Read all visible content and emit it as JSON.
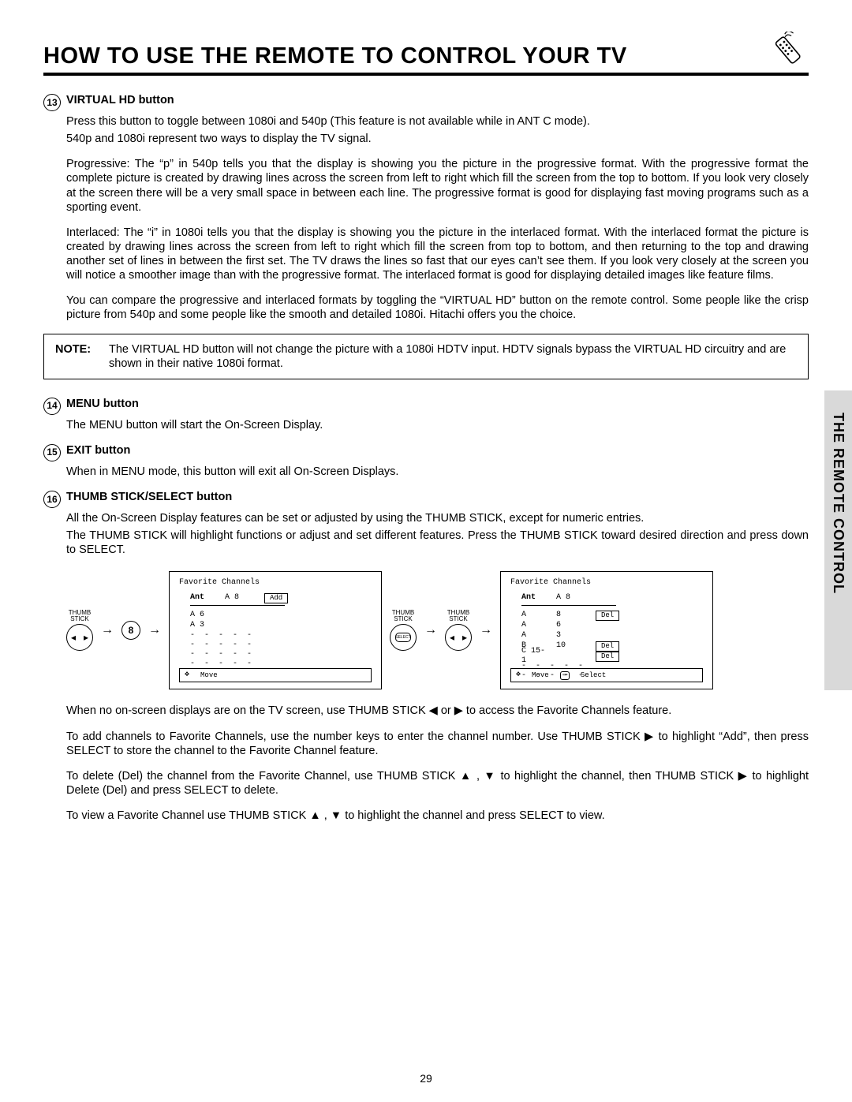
{
  "header": {
    "title": "HOW TO USE THE REMOTE TO CONTROL YOUR TV"
  },
  "side_tab": "THE REMOTE CONTROL",
  "page_number": "29",
  "items": {
    "i13": {
      "num": "13",
      "title": "VIRTUAL HD button",
      "p1": "Press this button to toggle between 1080i and 540p (This feature is not available while in ANT C mode).",
      "p2": "540p and 1080i represent two ways to display the TV signal.",
      "p3": "Progressive: The “p” in 540p tells you that the display is showing you the picture in the progressive format. With the progressive format the complete picture is created by drawing lines across the screen from left to right which fill the screen from the top to bottom. If you look very closely at the screen there will be a very small space in between each line. The progressive format is good for displaying fast moving programs such as a sporting event.",
      "p4": "Interlaced: The “i” in 1080i tells you that the display is showing you the picture in the interlaced format. With the interlaced format the picture is created by drawing lines across the screen from left to right which fill the screen from top to bottom, and then returning to the top and drawing another set of lines in between the first set. The TV draws the lines so fast that our eyes can’t see them. If you look very closely at the screen you will notice a smoother image than with the progressive format. The interlaced format is good for displaying detailed images like feature films.",
      "p5": "You can compare the progressive and interlaced formats by toggling the “VIRTUAL HD” button on the remote control. Some people like the crisp picture from 540p and some people like the smooth and detailed 1080i. Hitachi offers you the choice."
    },
    "note": {
      "label": "NOTE:",
      "text": "The VIRTUAL HD button will not change the picture with a 1080i HDTV input. HDTV signals bypass the VIRTUAL HD circuitry and are shown in their native 1080i format."
    },
    "i14": {
      "num": "14",
      "title": "MENU button",
      "p1": "The MENU button will start the On-Screen Display."
    },
    "i15": {
      "num": "15",
      "title": "EXIT button",
      "p1": "When in MENU mode, this button will exit all On-Screen Displays."
    },
    "i16": {
      "num": "16",
      "title": "THUMB STICK/SELECT button",
      "p1": "All the On-Screen Display features can be set or adjusted by using the THUMB STICK, except for numeric entries.",
      "p2": "The THUMB STICK will highlight functions or adjust and set different features.  Press the THUMB STICK toward desired direction and press down to SELECT."
    },
    "post": {
      "p1": "When no on-screen displays are on the TV screen, use THUMB STICK ◀ or ▶ to access the Favorite Channels feature.",
      "p2": "To add channels to Favorite Channels, use the number keys to enter the channel number.  Use THUMB STICK ▶ to highlight “Add”, then press SELECT to store the channel to the Favorite Channel feature.",
      "p3": "To delete (Del) the channel from the Favorite Channel, use THUMB STICK ▲ , ▼ to highlight the channel, then THUMB STICK ▶ to highlight Delete (Del) and press SELECT to delete.",
      "p4": "To view a Favorite Channel use THUMB STICK ▲ , ▼ to highlight the channel and press SELECT to view."
    }
  },
  "diagram": {
    "thumb_label": "THUMB\nSTICK",
    "num_button": "8",
    "select_label": "SELECT",
    "osd1": {
      "title": "Favorite Channels",
      "header": {
        "c1": "Ant",
        "c2": "A 8",
        "btn": "Add"
      },
      "rows": [
        {
          "c1": "A 6",
          "c2": ""
        },
        {
          "c1": "A 3",
          "c2": ""
        }
      ],
      "dash_rows": 4,
      "footer_move": "Move"
    },
    "osd2": {
      "title": "Favorite Channels",
      "header": {
        "c1": "Ant",
        "c2": "A 8"
      },
      "rows": [
        {
          "c1": "A",
          "c2": "8",
          "btn": "Del"
        },
        {
          "c1": "A",
          "c2": "6"
        },
        {
          "c1": "A",
          "c2": "3"
        },
        {
          "c1": "B",
          "c2": "10",
          "btn": "Del"
        },
        {
          "c1": "C 15-1",
          "c2": "",
          "btn": "Del"
        }
      ],
      "dash_rows": 2,
      "footer_move": "Move",
      "footer_select": "Select"
    }
  }
}
